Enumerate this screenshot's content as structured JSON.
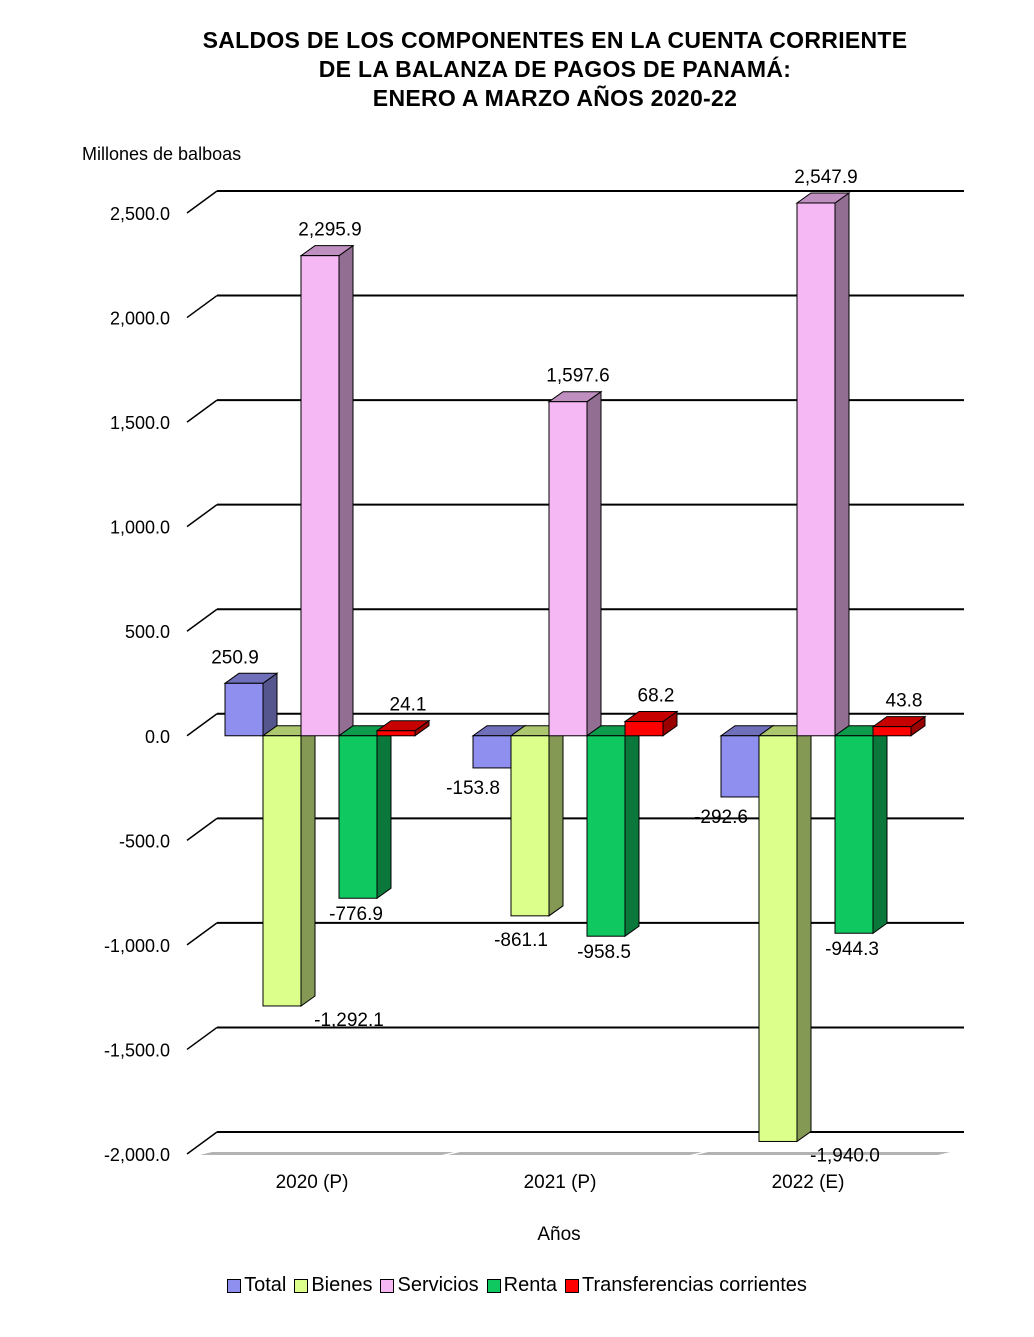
{
  "chart_data": {
    "type": "bar",
    "title": [
      "SALDOS DE LOS COMPONENTES EN LA CUENTA CORRIENTE",
      "DE LA BALANZA DE PAGOS DE PANAMÁ:",
      "ENERO A MARZO AÑOS 2020-22"
    ],
    "ylabel": "Millones de balboas",
    "xlabel": "Años",
    "categories": [
      "2020 (P)",
      "2021 (P)",
      "2022 (E)"
    ],
    "ylim": [
      -2000,
      2500
    ],
    "yticks": [
      2500,
      2000,
      1500,
      1000,
      500,
      0,
      -500,
      -1000,
      -1500,
      -2000
    ],
    "ytick_labels": [
      "2,500.0",
      "2,000.0",
      "1,500.0",
      "1,000.0",
      "500.0",
      "0.0",
      "-500.0",
      "-1,000.0",
      "-1,500.0",
      "-2,000.0"
    ],
    "grid": true,
    "legend": "bottom",
    "series": [
      {
        "name": "Total",
        "color": "#8f8fef",
        "values": [
          250.9,
          -153.8,
          -292.6
        ],
        "labels": [
          "250.9",
          "-153.8",
          "-292.6"
        ]
      },
      {
        "name": "Bienes",
        "color": "#dcff8c",
        "values": [
          -1292.1,
          -861.1,
          -1940.0
        ],
        "labels": [
          "-1,292.1",
          "-861.1",
          "-1,940.0"
        ]
      },
      {
        "name": "Servicios",
        "color": "#f5b8f5",
        "values": [
          2295.9,
          1597.6,
          2547.9
        ],
        "labels": [
          "2,295.9",
          "1,597.6",
          "2,547.9"
        ]
      },
      {
        "name": "Renta",
        "color": "#10c860",
        "values": [
          -776.9,
          -958.5,
          -944.3
        ],
        "labels": [
          "-776.9",
          "-958.5",
          "-944.3"
        ]
      },
      {
        "name": "Transferencias corrientes",
        "color": "#ff0000",
        "values": [
          24.1,
          68.2,
          43.8
        ],
        "labels": [
          "24.1",
          "68.2",
          "43.8"
        ]
      }
    ]
  }
}
